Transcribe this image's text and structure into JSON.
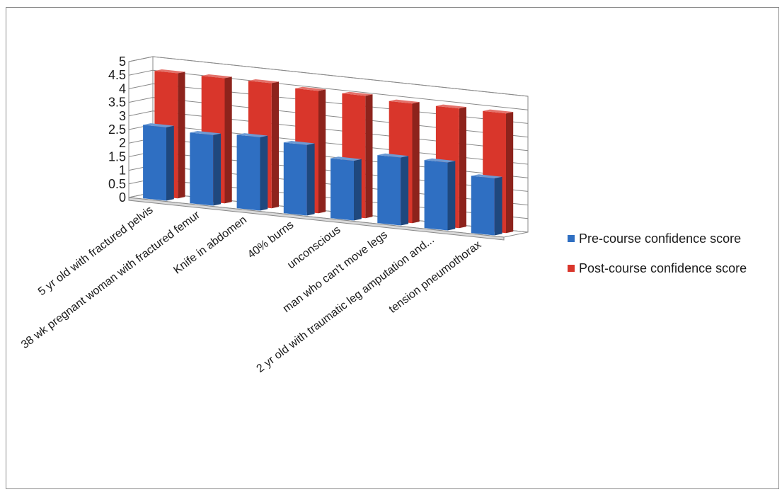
{
  "chart_data": {
    "type": "bar",
    "categories": [
      "5 yr old with fractured pelvis",
      "38 wk pregnant woman with fractured femur",
      "Knife in abdomen",
      "40% burns",
      "unconscious",
      "man who can't move legs",
      "2 yr old with traumatic leg amputation and...",
      "tension pneumothorax"
    ],
    "series": [
      {
        "name": "Pre-course confidence score",
        "color": "#2f6fc2",
        "values": [
          2.7,
          2.6,
          2.7,
          2.6,
          2.2,
          2.5,
          2.5,
          2.1
        ]
      },
      {
        "name": "Post-course confidence score",
        "color": "#d9362b",
        "values": [
          4.6,
          4.6,
          4.6,
          4.5,
          4.5,
          4.4,
          4.4,
          4.4
        ]
      }
    ],
    "yticks": [
      "0",
      "0.5",
      "1",
      "1.5",
      "2",
      "2.5",
      "3",
      "3.5",
      "4",
      "4.5",
      "5"
    ],
    "ylim": [
      0,
      5
    ],
    "grid": true,
    "legend_position": "right",
    "title": "",
    "xlabel": "",
    "ylabel": ""
  }
}
